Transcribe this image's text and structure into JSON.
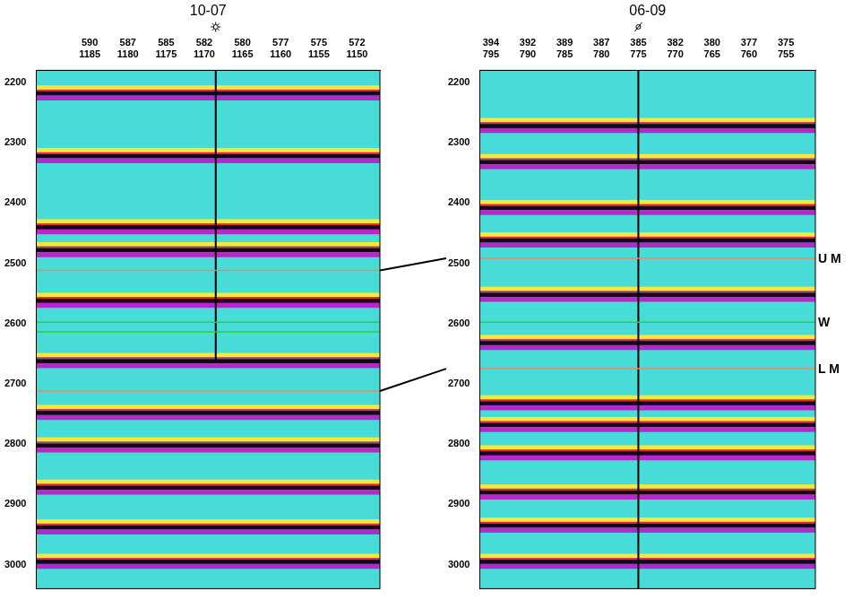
{
  "chart_data": [
    {
      "type": "line",
      "title": "10-07",
      "xlim": [
        1192,
        1147
      ],
      "ylim": [
        2180,
        3040
      ],
      "xticks": [
        {
          "value": 1185,
          "label": [
            "590",
            "1185"
          ]
        },
        {
          "value": 1180,
          "label": [
            "587",
            "1180"
          ]
        },
        {
          "value": 1175,
          "label": [
            "585",
            "1175"
          ]
        },
        {
          "value": 1170,
          "label": [
            "582",
            "1170"
          ]
        },
        {
          "value": 1165,
          "label": [
            "580",
            "1165"
          ]
        },
        {
          "value": 1160,
          "label": [
            "577",
            "1160"
          ]
        },
        {
          "value": 1155,
          "label": [
            "575",
            "1155"
          ]
        },
        {
          "value": 1150,
          "label": [
            "572",
            "1150"
          ]
        }
      ],
      "yticks": [
        2200,
        2300,
        2400,
        2500,
        2600,
        2700,
        2800,
        2900,
        3000
      ],
      "grid": false,
      "color": "#48dcd8",
      "well": {
        "x": 1168.5,
        "from": 2180,
        "to": 2665,
        "marker": "star"
      },
      "horizons": [
        {
          "time": 2512,
          "color": "#ff8060",
          "tie": true
        },
        {
          "time": 2598,
          "color": "#30d030",
          "tie": false
        },
        {
          "time": 2614,
          "color": "#30d030",
          "tie": false
        },
        {
          "time": 2712,
          "color": "#ff8060",
          "tie": true
        }
      ],
      "bands": [
        [
          2205,
          2212,
          "#f4e83a"
        ],
        [
          2212,
          2215,
          "#e8283a"
        ],
        [
          2215,
          2222,
          "#1a0020"
        ],
        [
          2222,
          2230,
          "#b828c8"
        ],
        [
          2309,
          2316,
          "#f4e83a"
        ],
        [
          2316,
          2319,
          "#e8283a"
        ],
        [
          2319,
          2326,
          "#1a0020"
        ],
        [
          2326,
          2334,
          "#b828c8"
        ],
        [
          2427,
          2434,
          "#f4e83a"
        ],
        [
          2434,
          2437,
          "#e8283a"
        ],
        [
          2437,
          2444,
          "#1a0020"
        ],
        [
          2444,
          2452,
          "#b828c8"
        ],
        [
          2465,
          2472,
          "#f4e83a"
        ],
        [
          2472,
          2475,
          "#e8283a"
        ],
        [
          2475,
          2482,
          "#1a0020"
        ],
        [
          2482,
          2490,
          "#b828c8"
        ],
        [
          2549,
          2556,
          "#f4e83a"
        ],
        [
          2556,
          2559,
          "#e8283a"
        ],
        [
          2559,
          2566,
          "#1a0020"
        ],
        [
          2566,
          2574,
          "#b828c8"
        ],
        [
          2649,
          2656,
          "#f4e83a"
        ],
        [
          2656,
          2659,
          "#e8283a"
        ],
        [
          2659,
          2666,
          "#1a0020"
        ],
        [
          2666,
          2674,
          "#b828c8"
        ],
        [
          2735,
          2742,
          "#f4e83a"
        ],
        [
          2742,
          2745,
          "#e8283a"
        ],
        [
          2745,
          2752,
          "#1a0020"
        ],
        [
          2752,
          2760,
          "#b828c8"
        ],
        [
          2789,
          2796,
          "#f4e83a"
        ],
        [
          2796,
          2799,
          "#e8283a"
        ],
        [
          2799,
          2806,
          "#1a0020"
        ],
        [
          2806,
          2814,
          "#b828c8"
        ],
        [
          2859,
          2866,
          "#f4e83a"
        ],
        [
          2866,
          2869,
          "#e8283a"
        ],
        [
          2869,
          2876,
          "#1a0020"
        ],
        [
          2876,
          2884,
          "#b828c8"
        ],
        [
          2925,
          2932,
          "#f4e83a"
        ],
        [
          2932,
          2935,
          "#e8283a"
        ],
        [
          2935,
          2942,
          "#1a0020"
        ],
        [
          2942,
          2950,
          "#b828c8"
        ],
        [
          2982,
          2989,
          "#f4e83a"
        ],
        [
          2989,
          2992,
          "#e8283a"
        ],
        [
          2992,
          2999,
          "#1a0020"
        ],
        [
          2999,
          3007,
          "#b828c8"
        ]
      ]
    },
    {
      "type": "line",
      "title": "06-09",
      "xlim": [
        796.5,
        751
      ],
      "ylim": [
        2180,
        3040
      ],
      "xticks": [
        {
          "value": 795,
          "label": [
            "394",
            "795"
          ]
        },
        {
          "value": 790,
          "label": [
            "392",
            "790"
          ]
        },
        {
          "value": 785,
          "label": [
            "389",
            "785"
          ]
        },
        {
          "value": 780,
          "label": [
            "387",
            "780"
          ]
        },
        {
          "value": 775,
          "label": [
            "385",
            "775"
          ]
        },
        {
          "value": 770,
          "label": [
            "382",
            "770"
          ]
        },
        {
          "value": 765,
          "label": [
            "380",
            "765"
          ]
        },
        {
          "value": 760,
          "label": [
            "377",
            "760"
          ]
        },
        {
          "value": 755,
          "label": [
            "375",
            "755"
          ]
        }
      ],
      "yticks": [
        2200,
        2300,
        2400,
        2500,
        2600,
        2700,
        2800,
        2900,
        3000
      ],
      "grid": false,
      "color": "#48dcd8",
      "well": {
        "x": 775,
        "from": 2180,
        "to": 3040,
        "marker": "slash"
      },
      "horizons": [
        {
          "name": "U M",
          "time": 2492,
          "color": "#ff8060",
          "tie": true
        },
        {
          "name": "W",
          "time": 2598,
          "color": "#30d030",
          "tie": false
        },
        {
          "name": "L M",
          "time": 2675,
          "color": "#ff8060",
          "tie": true
        }
      ],
      "bands": [
        [
          2259,
          2266,
          "#f4e83a"
        ],
        [
          2266,
          2269,
          "#e8283a"
        ],
        [
          2269,
          2276,
          "#1a0020"
        ],
        [
          2276,
          2284,
          "#b828c8"
        ],
        [
          2319,
          2326,
          "#f4e83a"
        ],
        [
          2326,
          2329,
          "#e8283a"
        ],
        [
          2329,
          2336,
          "#1a0020"
        ],
        [
          2336,
          2344,
          "#b828c8"
        ],
        [
          2395,
          2402,
          "#f4e83a"
        ],
        [
          2402,
          2405,
          "#e8283a"
        ],
        [
          2405,
          2412,
          "#1a0020"
        ],
        [
          2412,
          2420,
          "#b828c8"
        ],
        [
          2449,
          2456,
          "#f4e83a"
        ],
        [
          2456,
          2459,
          "#e8283a"
        ],
        [
          2459,
          2466,
          "#1a0020"
        ],
        [
          2466,
          2474,
          "#b828c8"
        ],
        [
          2539,
          2546,
          "#f4e83a"
        ],
        [
          2546,
          2549,
          "#e8283a"
        ],
        [
          2549,
          2556,
          "#1a0020"
        ],
        [
          2556,
          2564,
          "#b828c8"
        ],
        [
          2619,
          2626,
          "#f4e83a"
        ],
        [
          2626,
          2629,
          "#e8283a"
        ],
        [
          2629,
          2636,
          "#1a0020"
        ],
        [
          2636,
          2644,
          "#b828c8"
        ],
        [
          2719,
          2726,
          "#f4e83a"
        ],
        [
          2726,
          2729,
          "#e8283a"
        ],
        [
          2729,
          2736,
          "#1a0020"
        ],
        [
          2736,
          2744,
          "#b828c8"
        ],
        [
          2755,
          2762,
          "#f4e83a"
        ],
        [
          2762,
          2765,
          "#e8283a"
        ],
        [
          2765,
          2772,
          "#1a0020"
        ],
        [
          2772,
          2780,
          "#b828c8"
        ],
        [
          2802,
          2809,
          "#f4e83a"
        ],
        [
          2809,
          2812,
          "#e8283a"
        ],
        [
          2812,
          2819,
          "#1a0020"
        ],
        [
          2819,
          2827,
          "#b828c8"
        ],
        [
          2867,
          2874,
          "#f4e83a"
        ],
        [
          2874,
          2877,
          "#e8283a"
        ],
        [
          2877,
          2884,
          "#1a0020"
        ],
        [
          2884,
          2892,
          "#b828c8"
        ],
        [
          2922,
          2929,
          "#f4e83a"
        ],
        [
          2929,
          2932,
          "#e8283a"
        ],
        [
          2932,
          2939,
          "#1a0020"
        ],
        [
          2939,
          2947,
          "#b828c8"
        ],
        [
          2982,
          2989,
          "#f4e83a"
        ],
        [
          2989,
          2992,
          "#e8283a"
        ],
        [
          2992,
          2999,
          "#1a0020"
        ],
        [
          2999,
          3007,
          "#b828c8"
        ]
      ]
    }
  ]
}
